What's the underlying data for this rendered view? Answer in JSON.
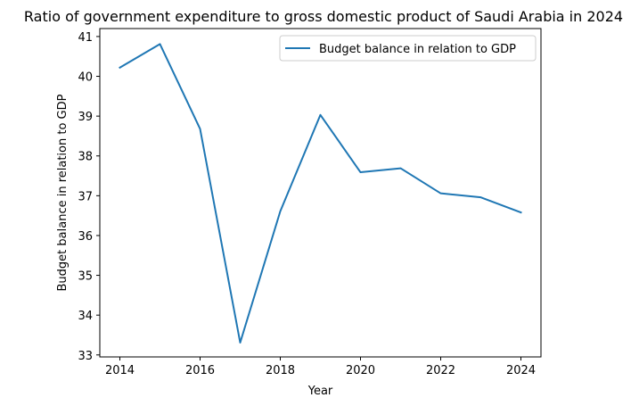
{
  "chart_data": {
    "type": "line",
    "title": "Ratio of government expenditure to gross domestic product of Saudi Arabia in 2024",
    "xlabel": "Year",
    "ylabel": "Budget balance in relation to GDP",
    "xlim": [
      2013.5,
      2024.5
    ],
    "ylim": [
      32.95,
      41.2
    ],
    "x_ticks": [
      2014,
      2016,
      2018,
      2020,
      2022,
      2024
    ],
    "y_ticks": [
      33,
      34,
      35,
      36,
      37,
      38,
      39,
      40,
      41
    ],
    "grid": false,
    "legend_position": "upper right",
    "series": [
      {
        "name": "Budget balance in relation to GDP",
        "color": "#1f77b4",
        "x": [
          2014,
          2015,
          2016,
          2017,
          2018,
          2019,
          2020,
          2021,
          2022,
          2023,
          2024
        ],
        "values": [
          40.22,
          40.81,
          38.68,
          33.31,
          36.61,
          39.03,
          37.59,
          37.69,
          37.06,
          36.96,
          36.58
        ]
      }
    ]
  }
}
